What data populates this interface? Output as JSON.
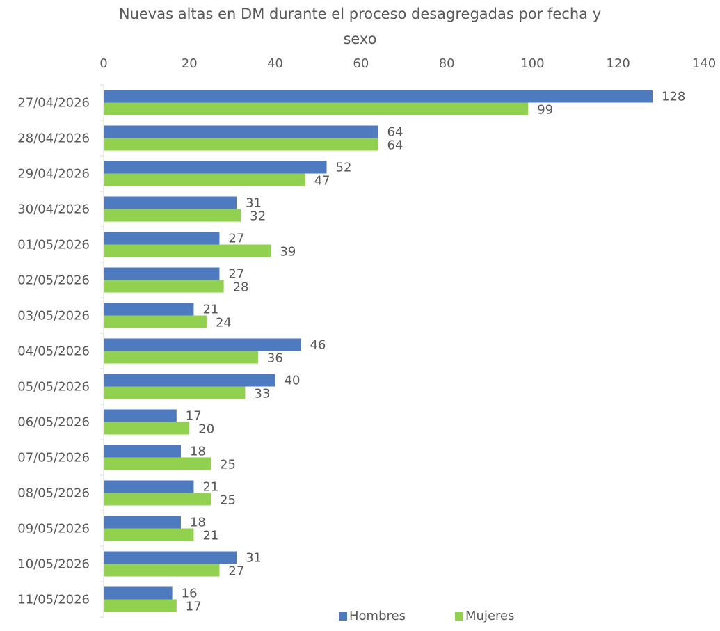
{
  "chart_data": {
    "type": "bar",
    "orientation": "horizontal",
    "title_lines": [
      "Nuevas altas en DM durante el proceso desagregadas por fecha y",
      "sexo"
    ],
    "categories": [
      "27/04/2026",
      "28/04/2026",
      "29/04/2026",
      "30/04/2026",
      "01/05/2026",
      "02/05/2026",
      "03/05/2026",
      "04/05/2026",
      "05/05/2026",
      "06/05/2026",
      "07/05/2026",
      "08/05/2026",
      "09/05/2026",
      "10/05/2026",
      "11/05/2026"
    ],
    "series": [
      {
        "name": "Hombres",
        "color": "#4E7AC0",
        "values": [
          128,
          64,
          52,
          31,
          27,
          27,
          21,
          46,
          40,
          17,
          18,
          21,
          18,
          31,
          16
        ]
      },
      {
        "name": "Mujeres",
        "color": "#92D050",
        "values": [
          99,
          64,
          47,
          32,
          39,
          28,
          24,
          36,
          33,
          20,
          25,
          25,
          21,
          27,
          17
        ]
      }
    ],
    "xaxis": {
      "position": "top",
      "ticks": [
        "0",
        "20",
        "40",
        "60",
        "80",
        "100",
        "120",
        "140"
      ],
      "range": [
        0,
        140
      ]
    },
    "grid": false,
    "data_labels": true,
    "legend_position": "bottom"
  }
}
